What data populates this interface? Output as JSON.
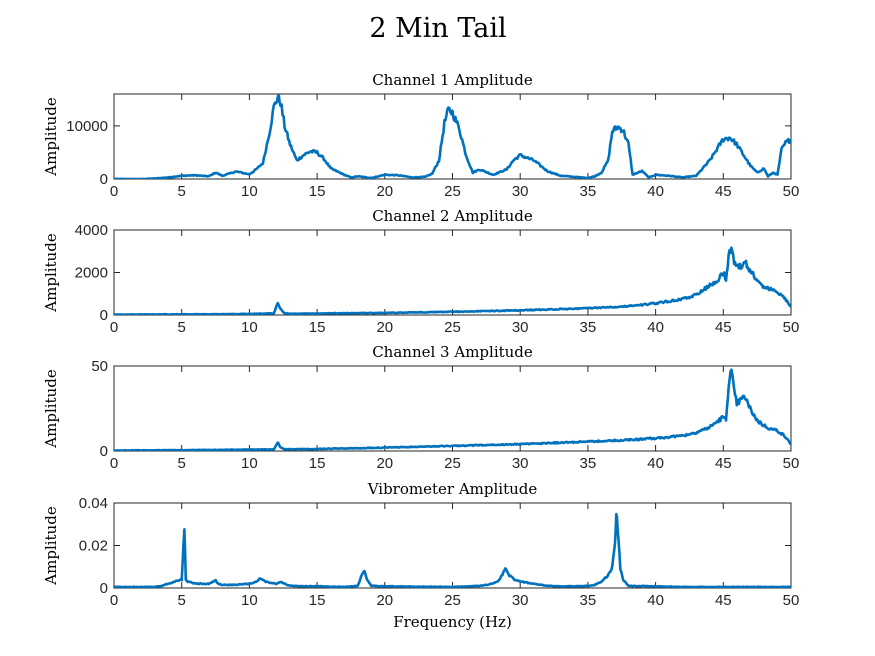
{
  "figure": {
    "title": "2 Min Tail",
    "line_color": "#0072BD"
  },
  "chart_data": [
    {
      "type": "line",
      "title": "Channel 1 Amplitude",
      "xlabel": "",
      "ylabel": "Amplitude",
      "xlim": [
        0,
        50
      ],
      "ylim": [
        0,
        16000
      ],
      "xticks": [
        "0",
        "5",
        "10",
        "15",
        "20",
        "25",
        "30",
        "35",
        "40",
        "45",
        "50"
      ],
      "yticks": [
        {
          "v": 0,
          "label": "0"
        },
        {
          "v": 10000,
          "label": "10000"
        }
      ],
      "grid": false,
      "series": [
        {
          "x": [
            0,
            2,
            3,
            4,
            5,
            6,
            7,
            7.5,
            8,
            9,
            10,
            10.5,
            11,
            11.5,
            11.8,
            12.1,
            12.3,
            12.6,
            13,
            13.5,
            14,
            14.5,
            15,
            15.5,
            16,
            17,
            17.5,
            18,
            19,
            20,
            21,
            22,
            23,
            23.5,
            24,
            24.4,
            24.7,
            25,
            25.5,
            26,
            26.5,
            27,
            28,
            29,
            29.5,
            30,
            31,
            32,
            33,
            34,
            35,
            35.5,
            36,
            36.5,
            36.8,
            37.2,
            37.6,
            38,
            38.3,
            39,
            39.5,
            40,
            41,
            42,
            43,
            44,
            44.5,
            45,
            45.5,
            46,
            46.5,
            47,
            47.5,
            48,
            48.3,
            48.7,
            49,
            49.3,
            49.6,
            50
          ],
          "y": [
            0,
            0,
            100,
            300,
            600,
            700,
            500,
            1200,
            600,
            1400,
            900,
            1800,
            3000,
            9000,
            13500,
            15500,
            14500,
            10000,
            6500,
            3500,
            4500,
            5200,
            5000,
            3800,
            2000,
            800,
            300,
            500,
            200,
            800,
            700,
            300,
            400,
            1000,
            3500,
            10500,
            13000,
            12500,
            9500,
            4500,
            1200,
            1800,
            800,
            1800,
            3500,
            4500,
            3500,
            1500,
            600,
            400,
            200,
            500,
            1200,
            3500,
            9000,
            9800,
            9200,
            6500,
            800,
            1500,
            300,
            800,
            600,
            300,
            600,
            3500,
            5500,
            7500,
            7800,
            6500,
            4500,
            2500,
            1200,
            2000,
            500,
            1200,
            800,
            5500,
            6800,
            7500
          ]
        }
      ]
    },
    {
      "type": "line",
      "title": "Channel 2 Amplitude",
      "xlabel": "",
      "ylabel": "Amplitude",
      "xlim": [
        0,
        50
      ],
      "ylim": [
        0,
        4000
      ],
      "xticks": [
        "0",
        "5",
        "10",
        "15",
        "20",
        "25",
        "30",
        "35",
        "40",
        "45",
        "50"
      ],
      "yticks": [
        {
          "v": 0,
          "label": "0"
        },
        {
          "v": 2000,
          "label": "2000"
        },
        {
          "v": 4000,
          "label": "4000"
        }
      ],
      "grid": false,
      "series": [
        {
          "x": [
            0,
            5,
            10,
            11.8,
            12.1,
            12.3,
            12.6,
            13,
            15,
            20,
            25,
            30,
            35,
            38,
            40,
            42,
            43,
            44,
            44.5,
            45,
            45.2,
            45.4,
            45.6,
            45.8,
            46,
            46.3,
            46.6,
            46.9,
            47.2,
            47.5,
            48,
            48.5,
            49,
            49.5,
            50
          ],
          "y": [
            20,
            30,
            50,
            80,
            550,
            300,
            80,
            60,
            70,
            100,
            150,
            220,
            320,
            420,
            550,
            750,
            950,
            1400,
            1600,
            2000,
            1700,
            2800,
            3200,
            2500,
            2200,
            2300,
            2500,
            2100,
            2000,
            1600,
            1300,
            1200,
            1100,
            800,
            400
          ]
        }
      ]
    },
    {
      "type": "line",
      "title": "Channel 3 Amplitude",
      "xlabel": "",
      "ylabel": "Amplitude",
      "xlim": [
        0,
        50
      ],
      "ylim": [
        0,
        50
      ],
      "xticks": [
        "0",
        "5",
        "10",
        "15",
        "20",
        "25",
        "30",
        "35",
        "40",
        "45",
        "50"
      ],
      "yticks": [
        {
          "v": 0,
          "label": "0"
        },
        {
          "v": 50,
          "label": "50"
        }
      ],
      "grid": false,
      "series": [
        {
          "x": [
            0,
            5,
            10,
            11.8,
            12.1,
            12.3,
            12.6,
            13,
            15,
            20,
            25,
            30,
            35,
            38,
            40,
            42,
            43,
            44,
            44.5,
            45,
            45.2,
            45.4,
            45.6,
            45.8,
            46,
            46.3,
            46.6,
            46.9,
            47.2,
            47.5,
            48,
            48.5,
            49,
            49.5,
            50
          ],
          "y": [
            0.3,
            0.5,
            0.8,
            1,
            5,
            2,
            1,
            1,
            1.2,
            2,
            3,
            4,
            5.5,
            6.5,
            7.5,
            9,
            11,
            14,
            17,
            20,
            18,
            40,
            47,
            35,
            28,
            30,
            32,
            26,
            22,
            18,
            15,
            13,
            12,
            9,
            4
          ]
        }
      ]
    },
    {
      "type": "line",
      "title": "Vibrometer Amplitude",
      "xlabel": "Frequency (Hz)",
      "ylabel": "Amplitude",
      "xlim": [
        0,
        50
      ],
      "ylim": [
        0,
        0.04
      ],
      "xticks": [
        "0",
        "5",
        "10",
        "15",
        "20",
        "25",
        "30",
        "35",
        "40",
        "45",
        "50"
      ],
      "yticks": [
        {
          "v": 0,
          "label": "0"
        },
        {
          "v": 0.02,
          "label": "0.02"
        },
        {
          "v": 0.04,
          "label": "0.04"
        }
      ],
      "grid": false,
      "series": [
        {
          "x": [
            0,
            3,
            3.5,
            4,
            4.5,
            5,
            5.2,
            5.3,
            5.4,
            5.6,
            6,
            7,
            7.5,
            7.7,
            8,
            9,
            10,
            10.5,
            10.8,
            11.2,
            12,
            12.3,
            12.6,
            13,
            15,
            17,
            18,
            18.3,
            18.5,
            18.7,
            19,
            20,
            25,
            27,
            28,
            28.5,
            28.9,
            29.2,
            29.6,
            30,
            31,
            32,
            33,
            34,
            35,
            35.5,
            36,
            36.5,
            36.8,
            37,
            37.1,
            37.2,
            37.4,
            37.6,
            38,
            40,
            42,
            45,
            47,
            50
          ],
          "y": [
            0.0005,
            0.0005,
            0.001,
            0.002,
            0.003,
            0.004,
            0.028,
            0.004,
            0.003,
            0.003,
            0.002,
            0.002,
            0.0035,
            0.002,
            0.0015,
            0.0015,
            0.002,
            0.003,
            0.0045,
            0.003,
            0.002,
            0.003,
            0.002,
            0.001,
            0.0008,
            0.0005,
            0.001,
            0.006,
            0.008,
            0.004,
            0.001,
            0.0008,
            0.0005,
            0.001,
            0.002,
            0.004,
            0.009,
            0.006,
            0.004,
            0.003,
            0.002,
            0.001,
            0.0008,
            0.0008,
            0.001,
            0.0015,
            0.003,
            0.006,
            0.01,
            0.02,
            0.035,
            0.028,
            0.009,
            0.004,
            0.001,
            0.0008,
            0.0005,
            0.0005,
            0.0005,
            0.0005
          ]
        }
      ]
    }
  ]
}
